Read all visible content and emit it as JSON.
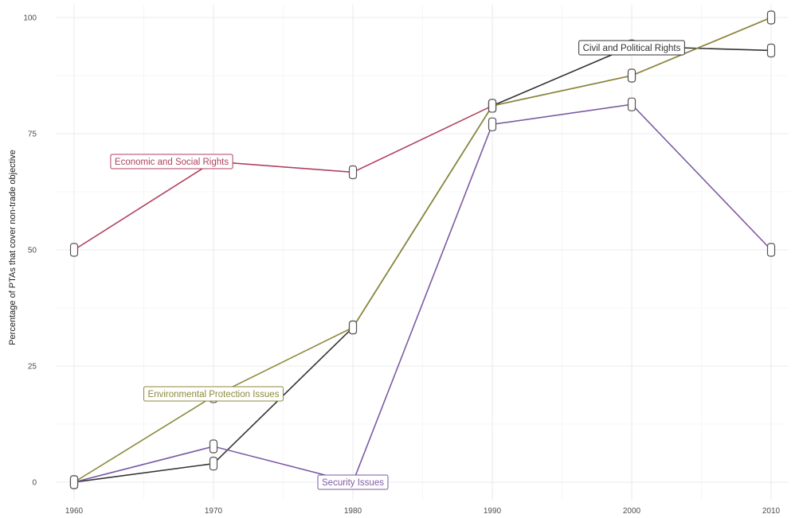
{
  "chart_data": {
    "type": "line",
    "ylabel": "Percentage of PTAs that cover non-trade objective",
    "xlabel": "",
    "x": [
      1960,
      1970,
      1980,
      1990,
      2000,
      2010
    ],
    "xlim": [
      1960,
      2010
    ],
    "ylim": [
      0,
      100
    ],
    "x_ticks": [
      "1960",
      "1970",
      "1980",
      "1990",
      "2000",
      "2010"
    ],
    "y_ticks": [
      "0",
      "25",
      "50",
      "75",
      "100"
    ],
    "grid": true,
    "legend": "none (direct labels)",
    "series": [
      {
        "name": "Economic and Social Rights",
        "color": "#b0415e",
        "values": [
          50,
          69,
          66.7,
          81,
          87.5,
          100
        ],
        "label_at": [
          1967,
          69
        ]
      },
      {
        "name": "Civil and Political Rights",
        "color": "#333333",
        "values": [
          0,
          4,
          33.3,
          81,
          93.8,
          92.9
        ],
        "label_at": [
          2000,
          93.5
        ]
      },
      {
        "name": "Environmental Protection Issues",
        "color": "#8c8a3c",
        "values": [
          0,
          18.5,
          33.3,
          81,
          87.5,
          100
        ],
        "label_at": [
          1970,
          19
        ]
      },
      {
        "name": "Security Issues",
        "color": "#7d5aa3",
        "values": [
          0,
          7.7,
          0,
          77,
          81.3,
          50
        ],
        "label_at": [
          1980,
          0
        ]
      }
    ]
  }
}
